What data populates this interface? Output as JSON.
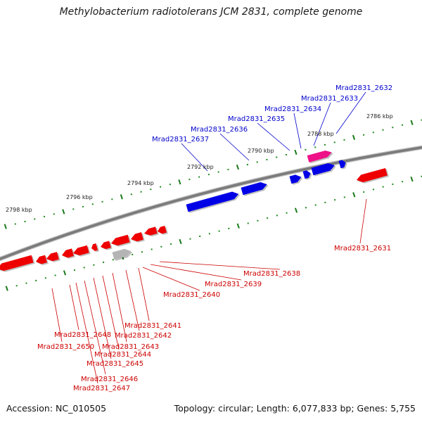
{
  "title": "Methylobacterium radiotolerans JCM 2831, complete genome",
  "footer": {
    "accession": "Accession: NC_010505",
    "summary": "Topology: circular; Length: 6,077,833 bp; Genes: 5,755"
  },
  "colors": {
    "forward_gene": "#0000e6",
    "reverse_gene": "#ee0000",
    "rna_gene": "#ee1188",
    "pseudo_gene": "#b4b4b4",
    "backbone": "#7a7a7a",
    "tick_dot": "#1f8a1f",
    "tick_major": "#1a7a1a",
    "forward_label": "#0000cc",
    "reverse_label": "#cc0000"
  },
  "scale_labels": [
    "2786 kbp",
    "2788 kbp",
    "2790 kbp",
    "2792 kbp",
    "2794 kbp",
    "2796 kbp",
    "2798 kbp"
  ],
  "genes_forward": [
    "Mrad2831_2632",
    "Mrad2831_2633",
    "Mrad2831_2634",
    "Mrad2831_2635",
    "Mrad2831_2636",
    "Mrad2831_2637"
  ],
  "genes_reverse": [
    "Mrad2831_2631",
    "Mrad2831_2638",
    "Mrad2831_2639",
    "Mrad2831_2640",
    "Mrad2831_2641",
    "Mrad2831_2642",
    "Mrad2831_2643",
    "Mrad2831_2644",
    "Mrad2831_2645",
    "Mrad2831_2646",
    "Mrad2831_2647",
    "Mrad2831_2648",
    "Mrad2831_2650"
  ]
}
